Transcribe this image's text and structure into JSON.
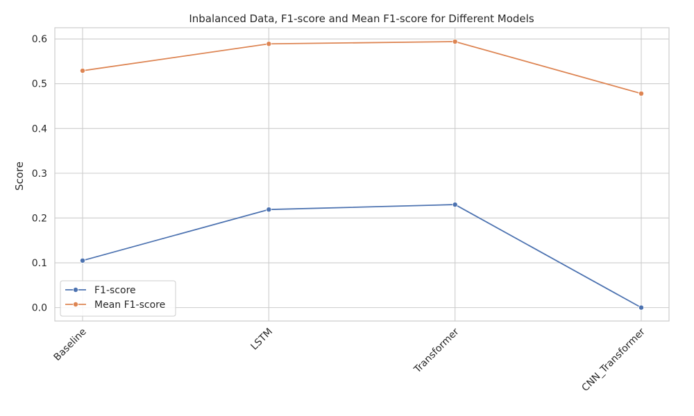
{
  "chart_data": {
    "type": "line",
    "title": "Inbalanced Data, F1-score and Mean F1-score for Different Models",
    "xlabel": "",
    "ylabel": "Score",
    "categories": [
      "Baseline",
      "LSTM",
      "Transformer",
      "CNN_Transformer"
    ],
    "ylim": [
      -0.03,
      0.625
    ],
    "yticks": [
      "0.0",
      "0.1",
      "0.2",
      "0.3",
      "0.4",
      "0.5",
      "0.6"
    ],
    "grid": true,
    "legend_position": "lower-left",
    "series": [
      {
        "name": "F1-score",
        "color": "#4c72b0",
        "values": [
          0.105,
          0.219,
          0.23,
          0.0
        ]
      },
      {
        "name": "Mean F1-score",
        "color": "#dd8452",
        "values": [
          0.529,
          0.589,
          0.594,
          0.478
        ]
      }
    ]
  }
}
